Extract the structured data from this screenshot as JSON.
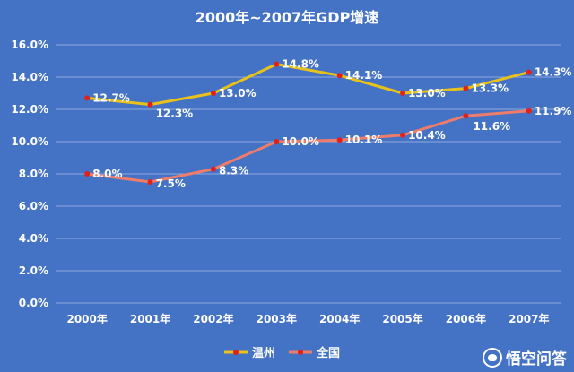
{
  "chart_data": {
    "type": "line",
    "title": "2000年~2007年GDP增速",
    "categories": [
      "2000年",
      "2001年",
      "2002年",
      "2003年",
      "2004年",
      "2005年",
      "2006年",
      "2007年"
    ],
    "series": [
      {
        "name": "温州",
        "color": "#e8c21a",
        "values": [
          12.7,
          12.3,
          13.0,
          14.8,
          14.1,
          13.0,
          13.3,
          14.3
        ],
        "labels": [
          "12.7%",
          "12.3%",
          "13.0%",
          "14.8%",
          "14.1%",
          "13.0%",
          "13.3%",
          "14.3%"
        ]
      },
      {
        "name": "全国",
        "color": "#ed7d6a",
        "values": [
          8.0,
          7.5,
          8.3,
          10.0,
          10.1,
          10.4,
          11.6,
          11.9
        ],
        "labels": [
          "8.0%",
          "7.5%",
          "8.3%",
          "10.0%",
          "10.1%",
          "10.4%",
          "11.6%",
          "11.9%"
        ]
      }
    ],
    "ylim": [
      0,
      16
    ],
    "yticks": [
      "0.0%",
      "2.0%",
      "4.0%",
      "6.0%",
      "8.0%",
      "10.0%",
      "12.0%",
      "14.0%",
      "16.0%"
    ],
    "grid": true,
    "legend": "bottom",
    "marker_color": "#e0201b"
  },
  "watermark": "悟空问答"
}
